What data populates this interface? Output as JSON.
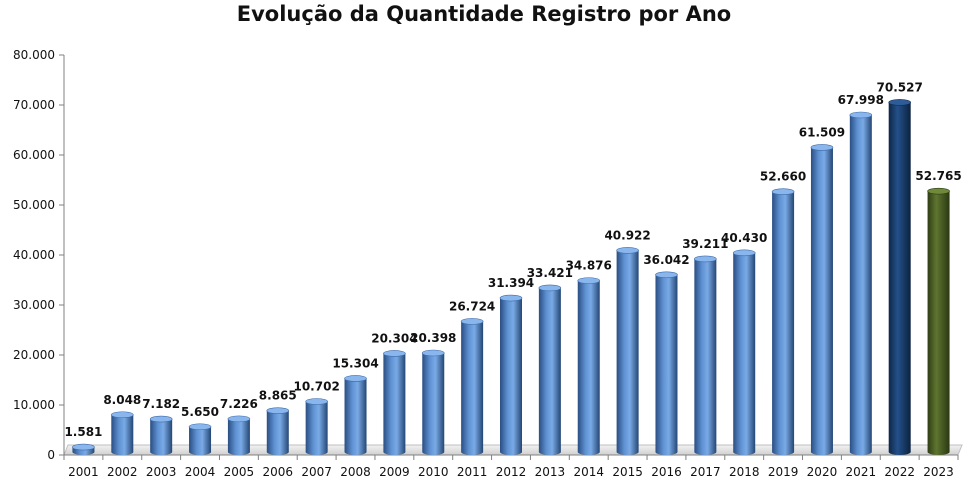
{
  "chart_data": {
    "type": "bar",
    "title": "Evolução da Quantidade Registro por Ano",
    "xlabel": "",
    "ylabel": "",
    "ylim": [
      0,
      80000
    ],
    "yticks": [
      0,
      10000,
      20000,
      30000,
      40000,
      50000,
      60000,
      70000,
      80000
    ],
    "ytick_labels": [
      "0",
      "10.000",
      "20.000",
      "30.000",
      "40.000",
      "50.000",
      "60.000",
      "70.000",
      "80.000"
    ],
    "grid": false,
    "categories": [
      "2001",
      "2002",
      "2003",
      "2004",
      "2005",
      "2006",
      "2007",
      "2008",
      "2009",
      "2010",
      "2011",
      "2012",
      "2013",
      "2014",
      "2015",
      "2016",
      "2017",
      "2018",
      "2019",
      "2020",
      "2021",
      "2022",
      "2023"
    ],
    "values": [
      1581,
      8048,
      7182,
      5650,
      7226,
      8865,
      10702,
      15304,
      20304,
      20398,
      26724,
      31394,
      33421,
      34876,
      40922,
      36042,
      39211,
      40430,
      52660,
      61509,
      67998,
      70527,
      52765
    ],
    "value_labels": [
      "1.581",
      "8.048",
      "7.182",
      "5.650",
      "7.226",
      "8.865",
      "10.702",
      "15.304",
      "20.304",
      "20.398",
      "26.724",
      "31.394",
      "33.421",
      "34.876",
      "40.922",
      "36.042",
      "39.211",
      "40.430",
      "52.660",
      "61.509",
      "67.998",
      "70.527",
      "52.765"
    ],
    "colors": {
      "default": "#4f81bd",
      "highlight_2022": "#17375e",
      "highlight_2023": "#4f6228",
      "floor": "#d9d9d9"
    }
  }
}
